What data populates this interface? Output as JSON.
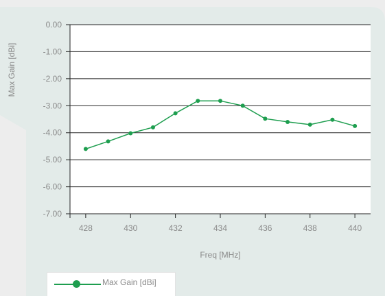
{
  "colors": {
    "page_background": "#ededed",
    "panel_background": "#e3ebe9",
    "plot_background": "#ffffff",
    "series": "#1e9e4f",
    "gridline": "#222222",
    "text": "#8a8a8a"
  },
  "legend": {
    "label": "Max Gain [dBi]",
    "placement": "bottom-left"
  },
  "chart_data": {
    "type": "line",
    "title": "",
    "xlabel": "Freq [MHz]",
    "ylabel": "Max Gain  [dBi]",
    "xlim": [
      427.3,
      440.7
    ],
    "ylim": [
      -7,
      0
    ],
    "xticks": [
      428,
      430,
      432,
      434,
      436,
      438,
      440
    ],
    "xtick_labels": [
      "428",
      "430",
      "432",
      "434",
      "436",
      "438",
      "440"
    ],
    "yticks": [
      0,
      -1,
      -2,
      -3,
      -4,
      -5,
      -6,
      -7
    ],
    "ytick_labels": [
      "0.00",
      "-1.00",
      "-2.00",
      "-3.00",
      "-4.00",
      "-5.00",
      "-6.00",
      "-7.00"
    ],
    "grid": "horizontal",
    "series": [
      {
        "name": "Max Gain [dBi]",
        "x": [
          428,
          429,
          430,
          431,
          432,
          433,
          434,
          435,
          436,
          437,
          438,
          439,
          440
        ],
        "values": [
          -4.6,
          -4.32,
          -4.02,
          -3.8,
          -3.28,
          -2.82,
          -2.82,
          -3.0,
          -3.48,
          -3.6,
          -3.7,
          -3.52,
          -3.75
        ]
      }
    ]
  }
}
